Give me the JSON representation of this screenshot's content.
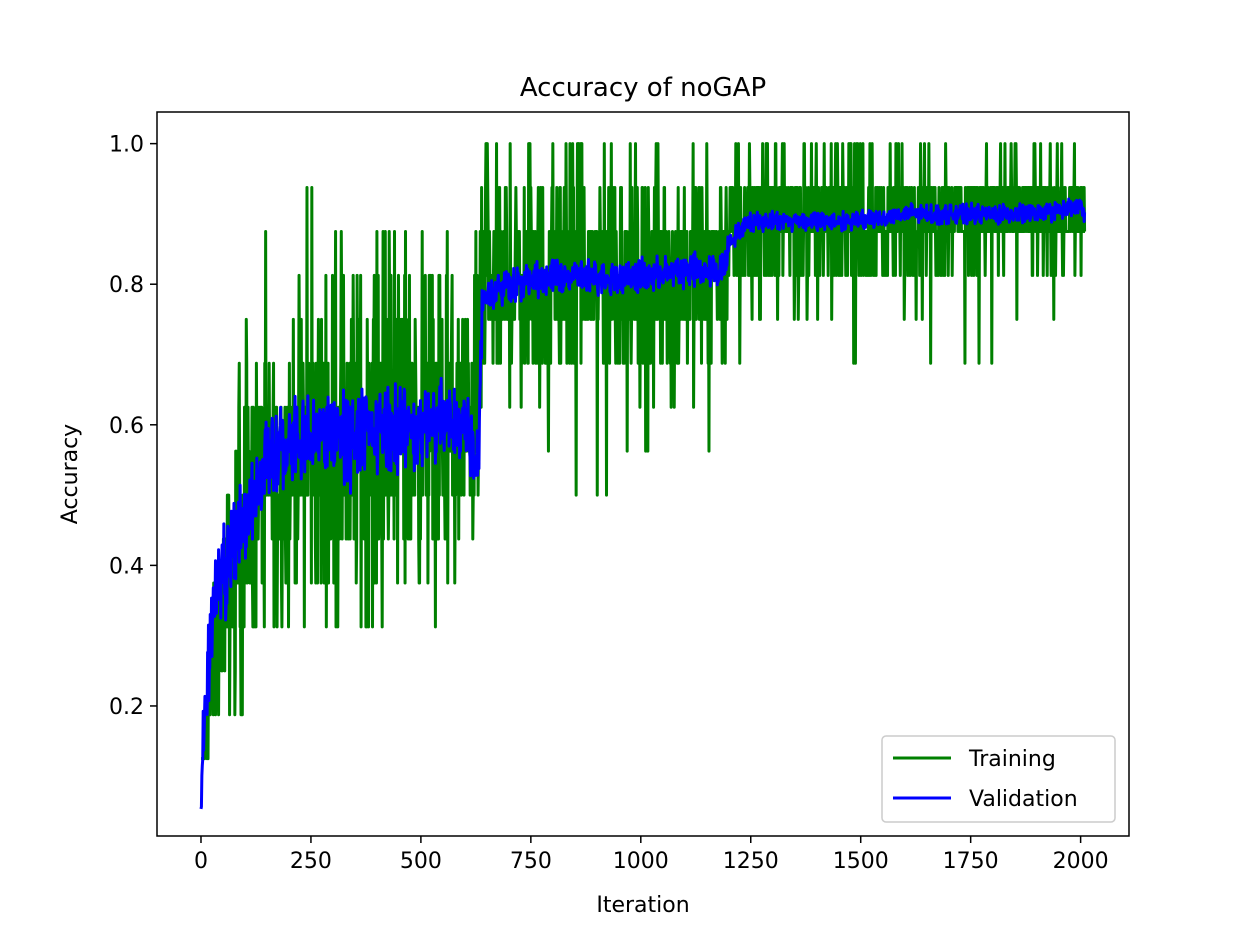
{
  "chart_data": {
    "type": "line",
    "title": "Accuracy of noGAP",
    "xlabel": "Iteration",
    "ylabel": "Accuracy",
    "xlim": [
      -100,
      2110
    ],
    "ylim": [
      0.015,
      1.045
    ],
    "xticks": [
      0,
      250,
      500,
      750,
      1000,
      1250,
      1500,
      1750,
      2000
    ],
    "yticks": [
      0.2,
      0.4,
      0.6,
      0.8,
      1.0
    ],
    "xtick_labels": [
      "0",
      "250",
      "500",
      "750",
      "1000",
      "1250",
      "1500",
      "1750",
      "2000"
    ],
    "ytick_labels": [
      "0.2",
      "0.4",
      "0.6",
      "0.8",
      "1.0"
    ],
    "grid": false,
    "legend_position": "lower-right",
    "series": [
      {
        "name": "Training",
        "color": "#008000",
        "noise": "quantized-1/16",
        "x": [
          0,
          25,
          50,
          100,
          150,
          200,
          250,
          300,
          400,
          500,
          600,
          630,
          640,
          700,
          800,
          900,
          1000,
          1100,
          1190,
          1200,
          1250,
          1400,
          1500,
          1600,
          1700,
          1800,
          1900,
          2000,
          2010
        ],
        "y": [
          0.09,
          0.25,
          0.33,
          0.45,
          0.52,
          0.55,
          0.57,
          0.58,
          0.59,
          0.6,
          0.6,
          0.62,
          0.79,
          0.8,
          0.81,
          0.82,
          0.81,
          0.82,
          0.83,
          0.87,
          0.88,
          0.89,
          0.89,
          0.89,
          0.9,
          0.9,
          0.9,
          0.9,
          0.9
        ],
        "y_min": [
          0.0625,
          0.125,
          0.1875,
          0.1875,
          0.3125,
          0.3125,
          0.3125,
          0.3125,
          0.3125,
          0.25,
          0.375,
          0.375,
          0.5625,
          0.5,
          0.5625,
          0.5,
          0.5625,
          0.625,
          0.5625,
          0.625,
          0.6875,
          0.75,
          0.6875,
          0.75,
          0.6875,
          0.6875,
          0.75,
          0.8125,
          0.8125
        ],
        "y_max": [
          0.375,
          0.5,
          0.625,
          0.75,
          0.875,
          0.875,
          0.9375,
          0.875,
          0.875,
          0.875,
          0.875,
          0.875,
          1.0,
          1.0,
          1.0,
          1.0,
          1.0,
          1.0,
          1.0,
          1.0,
          1.0,
          1.0,
          1.0,
          1.0,
          1.0,
          1.0,
          1.0,
          1.0,
          1.0
        ]
      },
      {
        "name": "Validation",
        "color": "#0000ff",
        "noise": "small",
        "x": [
          0,
          25,
          50,
          100,
          150,
          200,
          250,
          300,
          400,
          500,
          600,
          630,
          640,
          700,
          800,
          900,
          1000,
          1100,
          1190,
          1200,
          1250,
          1400,
          1500,
          1600,
          1700,
          1800,
          1900,
          2000,
          2010
        ],
        "y": [
          0.1,
          0.33,
          0.4,
          0.47,
          0.55,
          0.57,
          0.58,
          0.59,
          0.59,
          0.6,
          0.61,
          0.55,
          0.78,
          0.8,
          0.81,
          0.81,
          0.81,
          0.82,
          0.82,
          0.86,
          0.89,
          0.89,
          0.89,
          0.9,
          0.9,
          0.9,
          0.9,
          0.91,
          0.9
        ]
      }
    ]
  }
}
